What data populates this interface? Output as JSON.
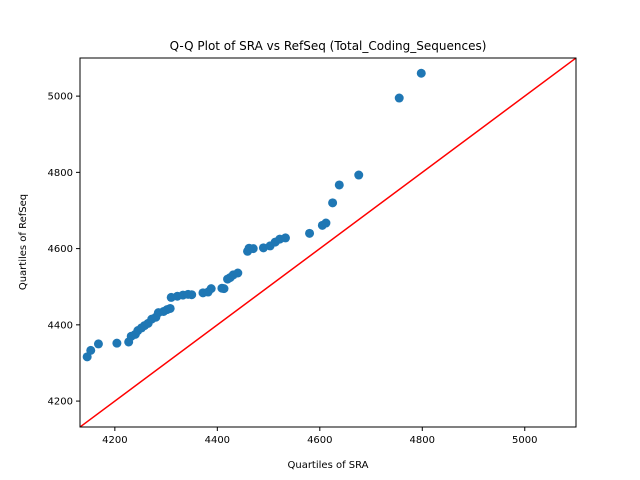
{
  "chart_data": {
    "type": "scatter",
    "title": "Q-Q Plot of SRA vs RefSeq (Total_Coding_Sequences)",
    "xlabel": "Quartiles of SRA",
    "ylabel": "Quartiles of RefSeq",
    "xlim": [
      4132,
      5100
    ],
    "ylim": [
      4132,
      5100
    ],
    "xticks": [
      4200,
      4400,
      4600,
      4800,
      5000
    ],
    "yticks": [
      4200,
      4400,
      4600,
      4800,
      5000
    ],
    "grid": false,
    "point_color": "#1f77b4",
    "reference_line": {
      "color": "#ff0000",
      "from": [
        4132,
        4132
      ],
      "to": [
        5100,
        5100
      ]
    },
    "points": [
      [
        4146,
        4316
      ],
      [
        4153,
        4333
      ],
      [
        4168,
        4350
      ],
      [
        4204,
        4352
      ],
      [
        4227,
        4355
      ],
      [
        4232,
        4370
      ],
      [
        4240,
        4375
      ],
      [
        4245,
        4385
      ],
      [
        4252,
        4392
      ],
      [
        4258,
        4398
      ],
      [
        4265,
        4404
      ],
      [
        4272,
        4415
      ],
      [
        4280,
        4420
      ],
      [
        4285,
        4432
      ],
      [
        4295,
        4435
      ],
      [
        4302,
        4440
      ],
      [
        4308,
        4443
      ],
      [
        4310,
        4472
      ],
      [
        4322,
        4475
      ],
      [
        4333,
        4478
      ],
      [
        4343,
        4480
      ],
      [
        4350,
        4479
      ],
      [
        4372,
        4484
      ],
      [
        4382,
        4486
      ],
      [
        4388,
        4495
      ],
      [
        4409,
        4496
      ],
      [
        4413,
        4495
      ],
      [
        4420,
        4520
      ],
      [
        4425,
        4524
      ],
      [
        4431,
        4531
      ],
      [
        4440,
        4536
      ],
      [
        4459,
        4593
      ],
      [
        4462,
        4601
      ],
      [
        4470,
        4600
      ],
      [
        4490,
        4602
      ],
      [
        4503,
        4607
      ],
      [
        4513,
        4617
      ],
      [
        4522,
        4625
      ],
      [
        4533,
        4628
      ],
      [
        4580,
        4640
      ],
      [
        4605,
        4661
      ],
      [
        4612,
        4667
      ],
      [
        4625,
        4720
      ],
      [
        4638,
        4767
      ],
      [
        4676,
        4793
      ],
      [
        4755,
        4995
      ],
      [
        4798,
        5060
      ]
    ]
  }
}
